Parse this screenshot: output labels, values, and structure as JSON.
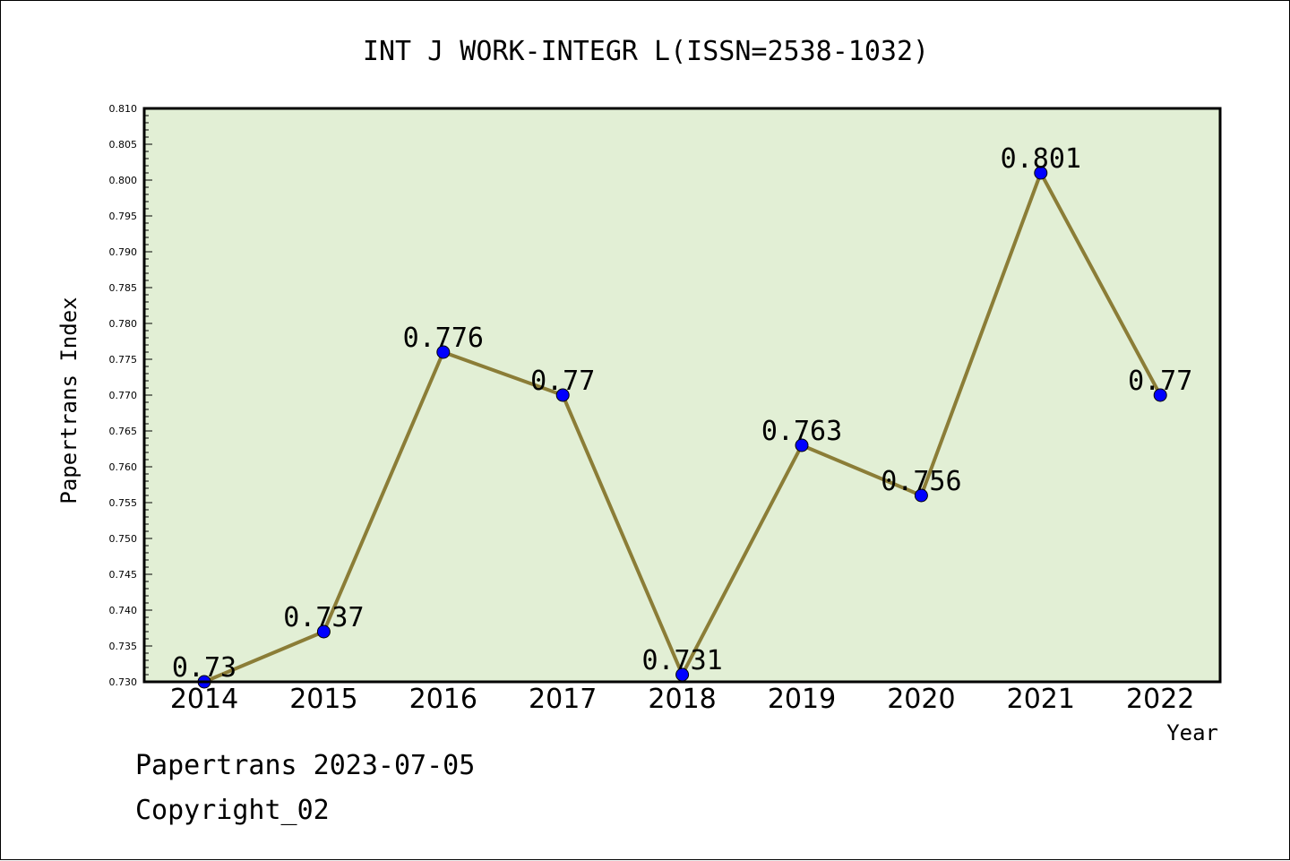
{
  "chart_data": {
    "type": "line",
    "title": "INT J WORK-INTEGR L(ISSN=2538-1032)",
    "xlabel": "Year",
    "ylabel": "Papertrans Index",
    "categories": [
      "2014",
      "2015",
      "2016",
      "2017",
      "2018",
      "2019",
      "2020",
      "2021",
      "2022"
    ],
    "series": [
      {
        "values": [
          0.73,
          0.737,
          0.776,
          0.77,
          0.731,
          0.763,
          0.756,
          0.801,
          0.77
        ],
        "data_labels": [
          "0.73",
          "0.737",
          "0.776",
          "0.77",
          "0.731",
          "0.763",
          "0.756",
          "0.801",
          "0.77"
        ]
      }
    ],
    "ylim": [
      0.73,
      0.81
    ],
    "yticks": [
      "0.730",
      "0.735",
      "0.740",
      "0.745",
      "0.750",
      "0.755",
      "0.760",
      "0.765",
      "0.770",
      "0.775",
      "0.780",
      "0.785",
      "0.790",
      "0.795",
      "0.800",
      "0.805",
      "0.810"
    ],
    "grid": false,
    "colors": {
      "plot_background": "#e2efd5",
      "line": "#8b7d37",
      "marker": "#0000ff"
    }
  },
  "footer": {
    "line1": "Papertrans 2023-07-05",
    "line2": "Copyright_02"
  }
}
